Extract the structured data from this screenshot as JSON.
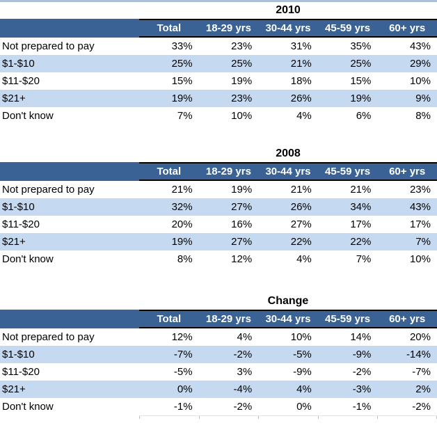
{
  "page": {
    "background": "#ffffff",
    "top_strip_color": "#abbfd3"
  },
  "colors": {
    "header_bg": "#3a6294",
    "header_text": "#ffffff",
    "stripe_bg": "#c5d9f0",
    "row_text": "#000000",
    "header_border": "#000000",
    "remnant_line": "#e3e3e3",
    "remnant_tick": "#bdbdbd"
  },
  "chart_data": [
    {
      "type": "table",
      "title": "2010",
      "unit": "%",
      "columns": [
        "Total",
        "18-29 yrs",
        "30-44 yrs",
        "45-59 yrs",
        "60+ yrs"
      ],
      "row_labels": [
        "Not prepared to pay",
        "$1-$10",
        "$11-$20",
        "$21+",
        "Don't know"
      ],
      "rows": [
        [
          33,
          23,
          31,
          35,
          43
        ],
        [
          25,
          25,
          21,
          25,
          29
        ],
        [
          15,
          19,
          18,
          15,
          10
        ],
        [
          19,
          23,
          26,
          19,
          9
        ],
        [
          7,
          10,
          4,
          6,
          8
        ]
      ]
    },
    {
      "type": "table",
      "title": "2008",
      "unit": "%",
      "columns": [
        "Total",
        "18-29 yrs",
        "30-44 yrs",
        "45-59 yrs",
        "60+ yrs"
      ],
      "row_labels": [
        "Not prepared to pay",
        "$1-$10",
        "$11-$20",
        "$21+",
        "Don't know"
      ],
      "rows": [
        [
          21,
          19,
          21,
          21,
          23
        ],
        [
          32,
          27,
          26,
          34,
          43
        ],
        [
          20,
          16,
          27,
          17,
          17
        ],
        [
          19,
          27,
          22,
          22,
          7
        ],
        [
          8,
          12,
          4,
          7,
          10
        ]
      ]
    },
    {
      "type": "table",
      "title": "Change",
      "unit": "%",
      "columns": [
        "Total",
        "18-29 yrs",
        "30-44 yrs",
        "45-59 yrs",
        "60+ yrs"
      ],
      "row_labels": [
        "Not prepared to pay",
        "$1-$10",
        "$11-$20",
        "$21+",
        "Don't know"
      ],
      "rows": [
        [
          12,
          4,
          10,
          14,
          20
        ],
        [
          -7,
          -2,
          -5,
          -9,
          -14
        ],
        [
          -5,
          3,
          -9,
          -2,
          -7
        ],
        [
          0,
          -4,
          4,
          -3,
          2
        ],
        [
          -1,
          -2,
          0,
          -1,
          -2
        ]
      ]
    }
  ]
}
